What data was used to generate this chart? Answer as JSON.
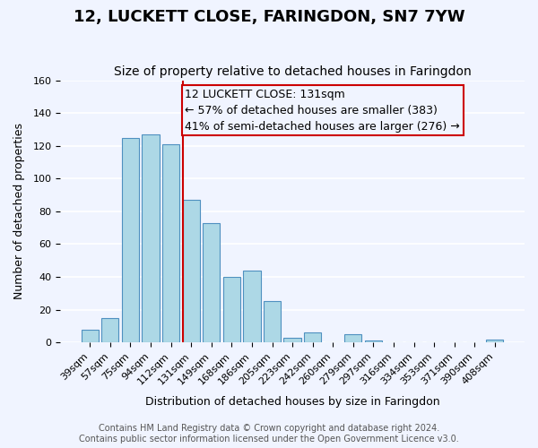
{
  "title": "12, LUCKETT CLOSE, FARINGDON, SN7 7YW",
  "subtitle": "Size of property relative to detached houses in Faringdon",
  "xlabel": "Distribution of detached houses by size in Faringdon",
  "ylabel": "Number of detached properties",
  "bar_labels": [
    "39sqm",
    "57sqm",
    "75sqm",
    "94sqm",
    "112sqm",
    "131sqm",
    "149sqm",
    "168sqm",
    "186sqm",
    "205sqm",
    "223sqm",
    "242sqm",
    "260sqm",
    "279sqm",
    "297sqm",
    "316sqm",
    "334sqm",
    "353sqm",
    "371sqm",
    "390sqm",
    "408sqm"
  ],
  "bar_values": [
    8,
    15,
    125,
    127,
    121,
    87,
    73,
    40,
    44,
    25,
    3,
    6,
    0,
    5,
    1,
    0,
    0,
    0,
    0,
    0,
    2
  ],
  "bar_color": "#add8e6",
  "bar_edge_color": "#4f90c0",
  "marker_index": 5,
  "marker_label": "131sqm",
  "marker_color": "#cc0000",
  "annotation_lines": [
    "12 LUCKETT CLOSE: 131sqm",
    "← 57% of detached houses are smaller (383)",
    "41% of semi-detached houses are larger (276) →"
  ],
  "annotation_box_edge": "#cc0000",
  "ylim": [
    0,
    160
  ],
  "yticks": [
    0,
    20,
    40,
    60,
    80,
    100,
    120,
    140,
    160
  ],
  "footer_lines": [
    "Contains HM Land Registry data © Crown copyright and database right 2024.",
    "Contains public sector information licensed under the Open Government Licence v3.0."
  ],
  "bg_color": "#f0f4ff",
  "grid_color": "#ffffff",
  "title_fontsize": 13,
  "subtitle_fontsize": 10,
  "axis_label_fontsize": 9,
  "tick_fontsize": 8,
  "annotation_fontsize": 9,
  "footer_fontsize": 7
}
